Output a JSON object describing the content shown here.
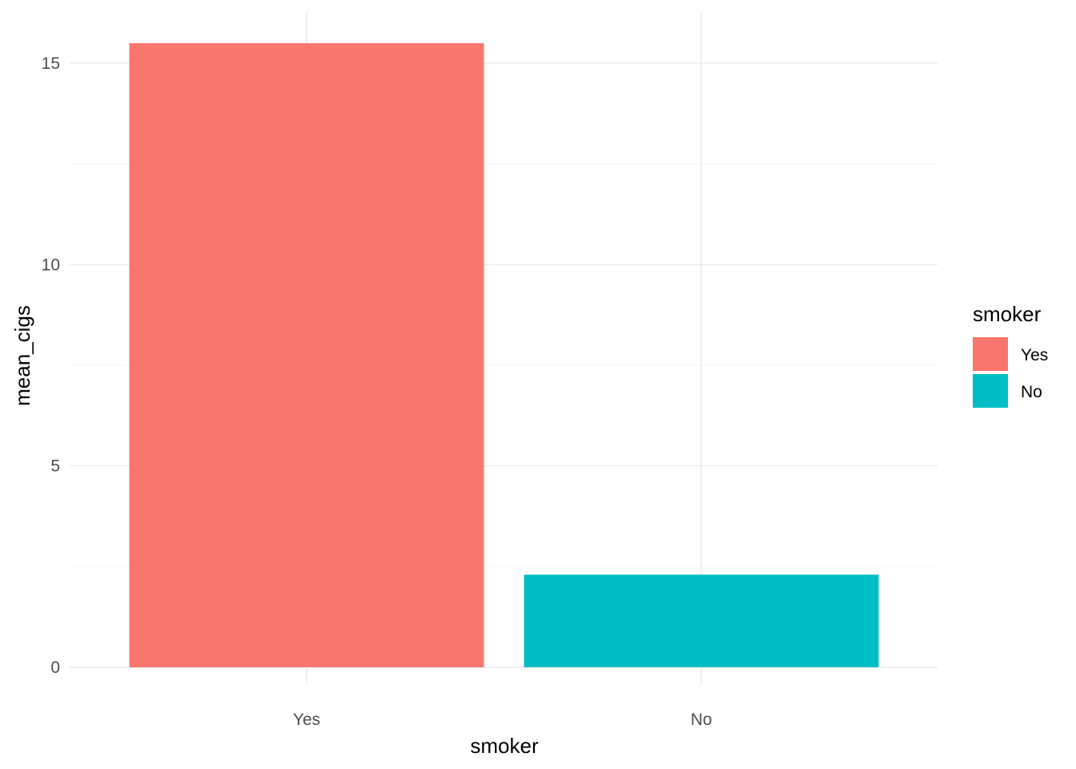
{
  "chart_data": {
    "type": "bar",
    "categories": [
      "Yes",
      "No"
    ],
    "values": [
      15.5,
      2.3
    ],
    "colors": [
      "#F8766D",
      "#00BFC4"
    ],
    "xlabel": "smoker",
    "ylabel": "mean_cigs",
    "ylim": [
      0,
      15.5
    ],
    "y_ticks": [
      0,
      5,
      10,
      15
    ],
    "y_tick_labels": [
      "0",
      "5",
      "10",
      "15"
    ],
    "grid": true,
    "legend": {
      "title": "smoker",
      "position": "right",
      "entries": [
        {
          "label": "Yes",
          "color": "#F8766D"
        },
        {
          "label": "No",
          "color": "#00BFC4"
        }
      ]
    }
  }
}
